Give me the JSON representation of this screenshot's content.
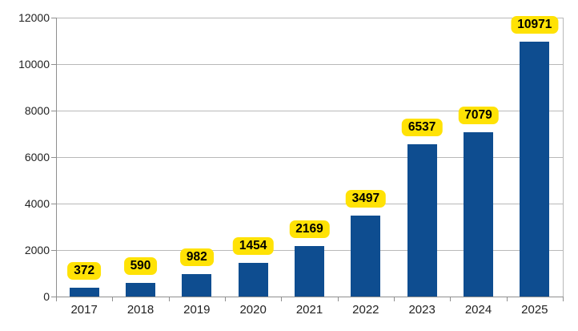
{
  "chart_data": {
    "type": "bar",
    "categories": [
      "2017",
      "2018",
      "2019",
      "2020",
      "2021",
      "2022",
      "2023",
      "2024",
      "2025"
    ],
    "values": [
      372,
      590,
      982,
      1454,
      2169,
      3497,
      6537,
      7079,
      10971
    ],
    "data_labels": [
      "372",
      "590",
      "982",
      "1454",
      "2169",
      "3497",
      "6537",
      "7079",
      "10971"
    ],
    "title": "",
    "xlabel": "",
    "ylabel": "",
    "ylim": [
      0,
      12000
    ],
    "yticks": [
      0,
      2000,
      4000,
      6000,
      8000,
      10000,
      12000
    ],
    "ytick_labels": [
      "0",
      "2000",
      "4000",
      "6000",
      "8000",
      "10000",
      "12000"
    ],
    "grid": true,
    "legend": "none"
  },
  "colors": {
    "bar": "#0E4D90",
    "label_bg": "#FFE205",
    "label_text": "#000000",
    "gridline": "#B9B9B9",
    "axis": "#8F8F8F",
    "tick_text": "#222222",
    "background": "#FFFFFF"
  }
}
